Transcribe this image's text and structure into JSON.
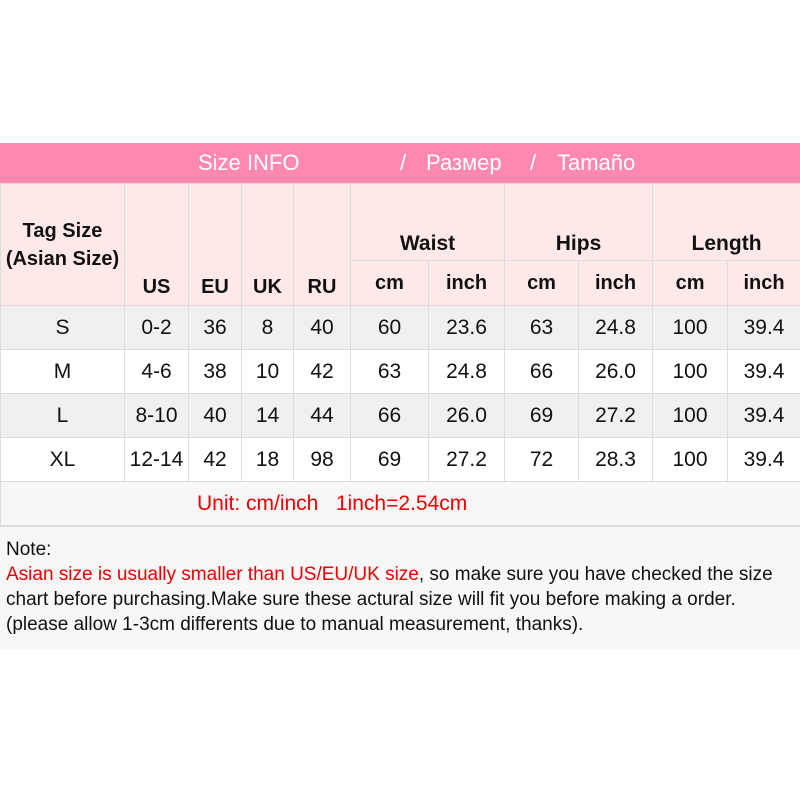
{
  "title": {
    "part1": "Size INFO",
    "sep1": "/",
    "part2": "Размер",
    "sep2": "/",
    "part3": "Tamaño"
  },
  "header": {
    "tag_size": "Tag Size (Asian Size)",
    "us": "US",
    "eu": "EU",
    "uk": "UK",
    "ru": "RU",
    "waist": "Waist",
    "hips": "Hips",
    "length": "Length",
    "cm": "cm",
    "inch": "inch"
  },
  "rows": [
    [
      "S",
      "0-2",
      "36",
      "8",
      "40",
      "60",
      "23.6",
      "63",
      "24.8",
      "100",
      "39.4"
    ],
    [
      "M",
      "4-6",
      "38",
      "10",
      "42",
      "63",
      "24.8",
      "66",
      "26.0",
      "100",
      "39.4"
    ],
    [
      "L",
      "8-10",
      "40",
      "14",
      "44",
      "66",
      "26.0",
      "69",
      "27.2",
      "100",
      "39.4"
    ],
    [
      "XL",
      "12-14",
      "42",
      "18",
      "98",
      "69",
      "27.2",
      "72",
      "28.3",
      "100",
      "39.4"
    ]
  ],
  "unit": "Unit: cm/inch   1inch=2.54cm",
  "note": {
    "label": "Note:",
    "highlight": "Asian size is usually smaller than US/EU/UK size",
    "text": ", so make sure you have checked the size chart before purchasing.Make sure these actural size will fit you before making a order.(please allow 1-3cm differents due to manual measurement, thanks)."
  },
  "colors": {
    "header_pink": "#ff88b0",
    "header_bg": "#ffe8e8",
    "highlight_red": "#e00000"
  }
}
